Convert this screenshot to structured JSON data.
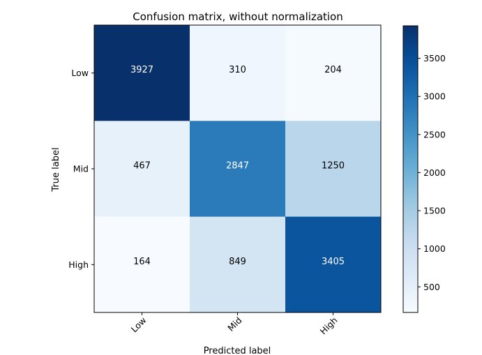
{
  "chart_data": {
    "type": "heatmap",
    "title": "Confusion matrix, without normalization",
    "xlabel": "Predicted label",
    "ylabel": "True label",
    "x_categories": [
      "Low",
      "Mid",
      "High"
    ],
    "y_categories": [
      "Low",
      "Mid",
      "High"
    ],
    "values": [
      [
        3927,
        310,
        204
      ],
      [
        467,
        2847,
        1250
      ],
      [
        164,
        849,
        3405
      ]
    ],
    "colormap": "Blues",
    "color_range": [
      164,
      3927
    ],
    "colorbar_ticks": [
      500,
      1000,
      1500,
      2000,
      2500,
      3000,
      3500
    ],
    "x_tick_rotation_deg": 45,
    "grid": false
  }
}
